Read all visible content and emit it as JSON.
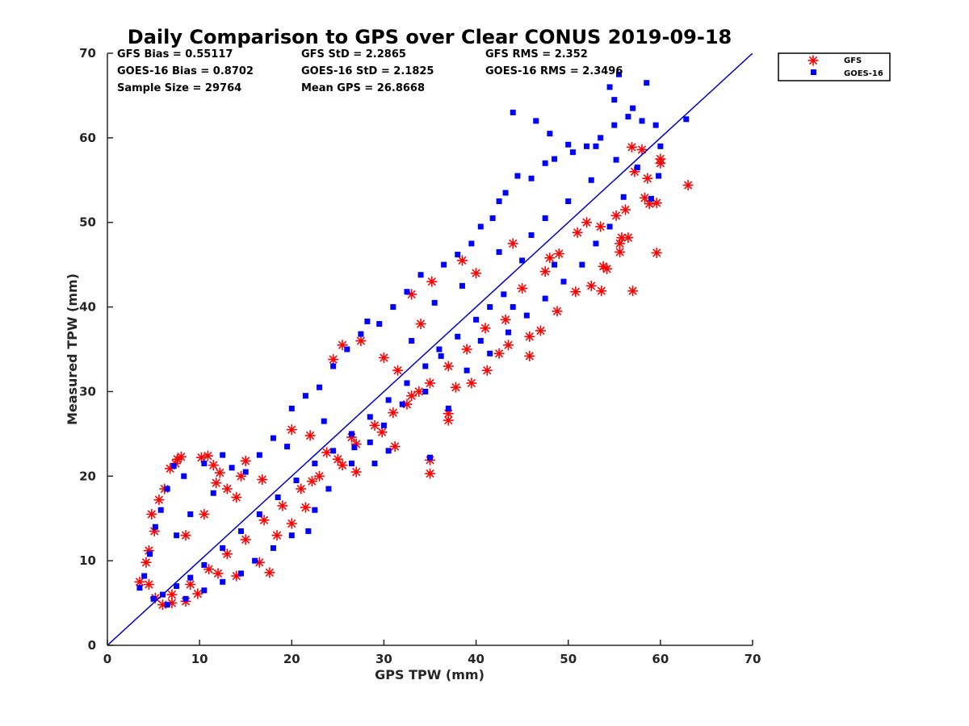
{
  "chart_data": {
    "type": "scatter",
    "title": "Daily Comparison to GPS over Clear CONUS 2019-09-18",
    "xlabel": "GPS TPW (mm)",
    "ylabel": "Measured TPW (mm)",
    "xlim": [
      0,
      70
    ],
    "ylim": [
      0,
      70
    ],
    "xticks": [
      "0",
      "10",
      "20",
      "30",
      "40",
      "50",
      "60",
      "70"
    ],
    "yticks": [
      "0",
      "10",
      "20",
      "30",
      "40",
      "50",
      "60",
      "70"
    ],
    "legend_position": "outside-top-right",
    "stats": {
      "gfs_bias": "GFS Bias = 0.55117",
      "goes_bias": "GOES-16 Bias = 0.8702",
      "sample_size": "Sample Size = 29764",
      "gfs_std": "GFS StD = 2.2865",
      "goes_std": "GOES-16 StD = 2.1825",
      "mean_gps": "Mean GPS = 26.8668",
      "gfs_rms": "GFS RMS = 2.352",
      "goes_rms": "GOES-16 RMS = 2.3496"
    },
    "reference_line": {
      "x": [
        0,
        70
      ],
      "y": [
        0,
        70
      ],
      "color": "#0000cc"
    },
    "series": [
      {
        "name": "GFS",
        "marker": "asterisk",
        "color": "#ff0000",
        "points": [
          [
            3.5,
            7.5
          ],
          [
            4.2,
            9.8
          ],
          [
            4.5,
            11.2
          ],
          [
            4.8,
            15.5
          ],
          [
            5.1,
            13.5
          ],
          [
            5.6,
            17.2
          ],
          [
            6.2,
            18.5
          ],
          [
            6.8,
            20.9
          ],
          [
            7.4,
            21.5
          ],
          [
            7.6,
            22.0
          ],
          [
            8.0,
            22.3
          ],
          [
            10.2,
            22.2
          ],
          [
            10.9,
            22.4
          ],
          [
            11.5,
            21.3
          ],
          [
            11.8,
            19.2
          ],
          [
            12.2,
            20.4
          ],
          [
            13.0,
            18.5
          ],
          [
            14.5,
            20.0
          ],
          [
            15.0,
            21.8
          ],
          [
            16.8,
            19.6
          ],
          [
            17.6,
            8.6
          ],
          [
            16.5,
            9.8
          ],
          [
            14.0,
            8.2
          ],
          [
            12.0,
            8.5
          ],
          [
            9.8,
            6.1
          ],
          [
            8.5,
            5.2
          ],
          [
            7.0,
            5.0
          ],
          [
            6.0,
            4.8
          ],
          [
            5.2,
            5.6
          ],
          [
            4.5,
            7.2
          ],
          [
            18.4,
            13.0
          ],
          [
            20.0,
            14.4
          ],
          [
            21.5,
            16.3
          ],
          [
            22.2,
            19.4
          ],
          [
            23.8,
            22.8
          ],
          [
            25.5,
            21.3
          ],
          [
            26.5,
            24.6
          ],
          [
            27.0,
            20.5
          ],
          [
            29.8,
            25.2
          ],
          [
            31.2,
            23.5
          ],
          [
            32.5,
            28.5
          ],
          [
            33.8,
            30.0
          ],
          [
            35.0,
            20.3
          ],
          [
            35.0,
            21.9
          ],
          [
            37.0,
            26.6
          ],
          [
            37.0,
            27.4
          ],
          [
            37.8,
            30.5
          ],
          [
            39.5,
            31.0
          ],
          [
            41.2,
            32.5
          ],
          [
            42.5,
            34.5
          ],
          [
            43.5,
            35.5
          ],
          [
            45.8,
            34.2
          ],
          [
            45.8,
            36.5
          ],
          [
            47.0,
            37.2
          ],
          [
            48.8,
            39.5
          ],
          [
            50.8,
            41.8
          ],
          [
            52.5,
            42.5
          ],
          [
            53.6,
            41.9
          ],
          [
            53.8,
            44.8
          ],
          [
            54.2,
            44.5
          ],
          [
            55.6,
            46.5
          ],
          [
            55.6,
            47.5
          ],
          [
            55.8,
            48.2
          ],
          [
            56.5,
            48.2
          ],
          [
            57.0,
            41.9
          ],
          [
            58.3,
            52.9
          ],
          [
            58.8,
            52.2
          ],
          [
            59.6,
            46.4
          ],
          [
            59.6,
            52.3
          ],
          [
            60.0,
            57.0
          ],
          [
            60.0,
            57.5
          ],
          [
            58.6,
            55.2
          ],
          [
            57.2,
            56.0
          ],
          [
            56.9,
            58.9
          ],
          [
            58.0,
            58.6
          ],
          [
            63.0,
            54.4
          ],
          [
            55.2,
            50.8
          ],
          [
            56.2,
            51.5
          ],
          [
            53.5,
            49.5
          ],
          [
            51.0,
            48.8
          ],
          [
            49.0,
            46.3
          ],
          [
            47.5,
            44.2
          ],
          [
            45.0,
            42.2
          ],
          [
            43.2,
            38.5
          ],
          [
            41.0,
            37.5
          ],
          [
            39.0,
            35.0
          ],
          [
            37.0,
            33.0
          ],
          [
            35.0,
            31.0
          ],
          [
            33.0,
            29.5
          ],
          [
            31.0,
            27.5
          ],
          [
            29.0,
            26.0
          ],
          [
            27.0,
            23.8
          ],
          [
            25.0,
            22.0
          ],
          [
            23.0,
            20.0
          ],
          [
            21.0,
            18.5
          ],
          [
            19.0,
            16.5
          ],
          [
            17.0,
            14.8
          ],
          [
            15.0,
            12.5
          ],
          [
            13.0,
            10.8
          ],
          [
            11.0,
            9.0
          ],
          [
            9.0,
            7.2
          ],
          [
            7.0,
            6.0
          ],
          [
            24.5,
            33.8
          ],
          [
            25.5,
            35.5
          ],
          [
            27.5,
            36.0
          ],
          [
            33.0,
            41.5
          ],
          [
            35.2,
            43.0
          ],
          [
            38.5,
            45.5
          ],
          [
            10.5,
            15.5
          ],
          [
            8.5,
            13.0
          ],
          [
            14.0,
            17.5
          ],
          [
            20.0,
            25.5
          ],
          [
            22.0,
            24.8
          ],
          [
            30.0,
            34.0
          ],
          [
            34.0,
            38.0
          ],
          [
            40.0,
            44.0
          ],
          [
            44.0,
            47.5
          ],
          [
            48.0,
            45.8
          ],
          [
            52.0,
            50.0
          ],
          [
            31.5,
            32.5
          ]
        ]
      },
      {
        "name": "GOES-16",
        "marker": "square",
        "color": "#0000ff",
        "points": [
          [
            3.5,
            6.8
          ],
          [
            4.0,
            8.2
          ],
          [
            4.6,
            10.8
          ],
          [
            5.2,
            14.0
          ],
          [
            5.8,
            16.0
          ],
          [
            6.5,
            18.5
          ],
          [
            7.2,
            21.2
          ],
          [
            8.3,
            20.0
          ],
          [
            10.5,
            21.5
          ],
          [
            12.5,
            22.5
          ],
          [
            13.5,
            21.0
          ],
          [
            16.5,
            22.5
          ],
          [
            18.0,
            24.5
          ],
          [
            20.0,
            28.0
          ],
          [
            21.5,
            29.5
          ],
          [
            23.0,
            30.5
          ],
          [
            24.5,
            33.0
          ],
          [
            26.0,
            35.0
          ],
          [
            27.5,
            36.8
          ],
          [
            28.2,
            38.3
          ],
          [
            29.5,
            38.0
          ],
          [
            31.0,
            40.0
          ],
          [
            32.5,
            41.8
          ],
          [
            34.0,
            43.8
          ],
          [
            36.5,
            45.0
          ],
          [
            38.0,
            46.2
          ],
          [
            39.5,
            47.5
          ],
          [
            40.5,
            49.5
          ],
          [
            41.8,
            50.5
          ],
          [
            42.5,
            52.5
          ],
          [
            43.2,
            53.5
          ],
          [
            44.5,
            55.5
          ],
          [
            46.0,
            55.2
          ],
          [
            47.5,
            57.0
          ],
          [
            48.5,
            57.5
          ],
          [
            50.5,
            58.3
          ],
          [
            52.0,
            59.0
          ],
          [
            53.5,
            60.0
          ],
          [
            55.0,
            61.5
          ],
          [
            56.5,
            62.5
          ],
          [
            58.0,
            62.0
          ],
          [
            59.5,
            61.5
          ],
          [
            54.5,
            66.0
          ],
          [
            55.5,
            67.5
          ],
          [
            57.0,
            63.5
          ],
          [
            58.5,
            66.5
          ],
          [
            55.0,
            64.5
          ],
          [
            53.0,
            59.0
          ],
          [
            57.5,
            56.5
          ],
          [
            59.8,
            55.5
          ],
          [
            62.8,
            62.2
          ],
          [
            44.0,
            63.0
          ],
          [
            46.5,
            62.0
          ],
          [
            48.0,
            60.5
          ],
          [
            50.0,
            59.2
          ],
          [
            55.2,
            57.4
          ],
          [
            60.0,
            59.0
          ],
          [
            59.0,
            52.8
          ],
          [
            56.0,
            53.0
          ],
          [
            47.5,
            50.5
          ],
          [
            45.0,
            45.5
          ],
          [
            43.0,
            41.5
          ],
          [
            41.5,
            40.0
          ],
          [
            40.0,
            38.5
          ],
          [
            38.0,
            36.5
          ],
          [
            36.0,
            35.0
          ],
          [
            34.5,
            33.0
          ],
          [
            32.5,
            31.0
          ],
          [
            30.5,
            29.0
          ],
          [
            28.5,
            27.0
          ],
          [
            26.5,
            25.0
          ],
          [
            24.5,
            23.0
          ],
          [
            22.5,
            21.5
          ],
          [
            20.5,
            19.5
          ],
          [
            18.5,
            17.5
          ],
          [
            16.5,
            15.5
          ],
          [
            14.5,
            13.5
          ],
          [
            12.5,
            11.5
          ],
          [
            10.5,
            9.5
          ],
          [
            9.0,
            8.0
          ],
          [
            7.5,
            7.0
          ],
          [
            6.0,
            6.0
          ],
          [
            5.0,
            5.5
          ],
          [
            6.5,
            4.8
          ],
          [
            8.5,
            5.5
          ],
          [
            10.5,
            6.5
          ],
          [
            12.5,
            7.5
          ],
          [
            14.5,
            8.5
          ],
          [
            16.0,
            10.0
          ],
          [
            18.0,
            11.5
          ],
          [
            20.0,
            13.0
          ],
          [
            21.8,
            13.5
          ],
          [
            22.5,
            16.0
          ],
          [
            24.0,
            18.5
          ],
          [
            26.5,
            21.5
          ],
          [
            28.5,
            24.0
          ],
          [
            30.0,
            26.0
          ],
          [
            32.0,
            28.5
          ],
          [
            34.5,
            30.0
          ],
          [
            35.0,
            22.2
          ],
          [
            37.0,
            28.0
          ],
          [
            39.0,
            32.5
          ],
          [
            41.5,
            34.5
          ],
          [
            43.5,
            37.0
          ],
          [
            45.5,
            39.0
          ],
          [
            47.5,
            41.0
          ],
          [
            49.5,
            43.0
          ],
          [
            51.5,
            45.0
          ],
          [
            53.0,
            47.5
          ],
          [
            54.5,
            49.5
          ],
          [
            26.8,
            23.4
          ],
          [
            29.0,
            21.5
          ],
          [
            30.5,
            23.0
          ],
          [
            15.0,
            20.5
          ],
          [
            11.5,
            18.0
          ],
          [
            9.0,
            15.5
          ],
          [
            7.5,
            13.0
          ],
          [
            19.5,
            23.5
          ],
          [
            23.5,
            26.5
          ],
          [
            35.5,
            40.5
          ],
          [
            38.5,
            42.5
          ],
          [
            42.5,
            46.5
          ],
          [
            46.0,
            48.5
          ],
          [
            50.0,
            52.5
          ],
          [
            52.5,
            55.0
          ],
          [
            36.2,
            34.2
          ],
          [
            40.5,
            36.0
          ],
          [
            44.0,
            40.0
          ],
          [
            48.5,
            45.0
          ],
          [
            33.0,
            36.0
          ]
        ]
      }
    ]
  }
}
